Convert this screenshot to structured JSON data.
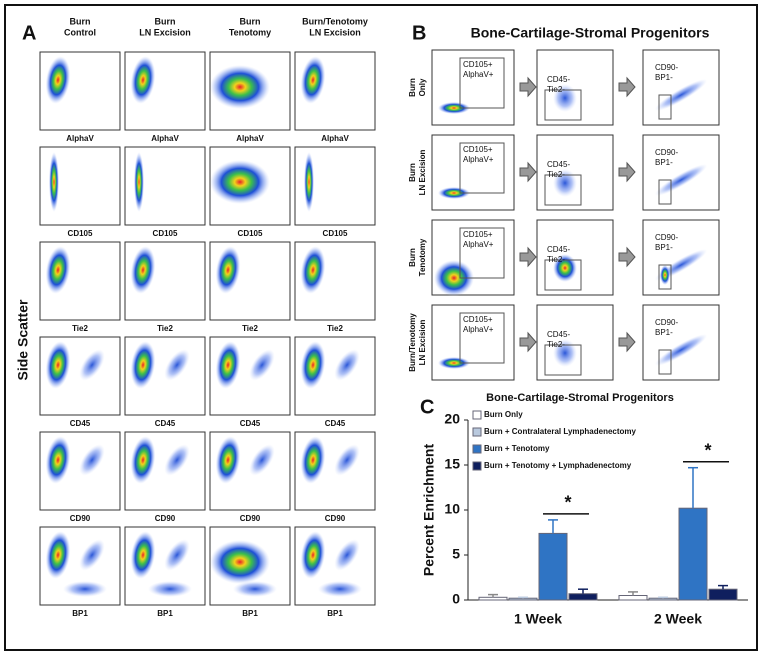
{
  "panel_a": {
    "label": "A",
    "y_label": "Side Scatter",
    "columns": [
      [
        "Burn",
        "Control"
      ],
      [
        "Burn",
        "LN Excision"
      ],
      [
        "Burn",
        "Tenotomy"
      ],
      [
        "Burn/Tenotomy",
        "LN Excision"
      ]
    ],
    "rows": [
      "AlphaV",
      "CD105",
      "Tie2",
      "CD45",
      "CD90",
      "BP1"
    ]
  },
  "panel_b": {
    "label": "B",
    "title": "Bone-Cartilage-Stromal Progenitors",
    "rows": [
      [
        "Burn",
        "Only"
      ],
      [
        "Burn",
        "LN Excision"
      ],
      [
        "Burn",
        "Tenotomy"
      ],
      [
        "Burn/Tenotomy",
        "LN Excision"
      ]
    ],
    "gates": [
      [
        "CD105+",
        "AlphaV+"
      ],
      [
        "CD45-",
        "Tie2-"
      ],
      [
        "CD90-",
        "BP1-"
      ]
    ]
  },
  "panel_c": {
    "label": "C"
  },
  "chart_data": {
    "type": "bar",
    "title": "Bone-Cartilage-Stromal Progenitors",
    "y_label": "Percent Enrichment",
    "categories": [
      "1 Week",
      "2 Week"
    ],
    "series": [
      {
        "name": "Burn Only",
        "color": "#ffffff",
        "values": [
          0.3,
          0.5
        ],
        "errors": [
          0.3,
          0.4
        ]
      },
      {
        "name": "Burn + Contralateral Lymphadenectomy",
        "color": "#b9c9de",
        "values": [
          0.2,
          0.2
        ],
        "errors": [
          0.1,
          0.1
        ]
      },
      {
        "name": "Burn + Tenotomy",
        "color": "#2f74c4",
        "values": [
          7.4,
          10.2
        ],
        "errors": [
          1.5,
          4.5
        ]
      },
      {
        "name": "Burn + Tenotomy + Lymphadenectomy",
        "color": "#0f1f5e",
        "values": [
          0.7,
          1.2
        ],
        "errors": [
          0.5,
          0.4
        ]
      }
    ],
    "annotations": [
      "*",
      "*"
    ],
    "ylim": [
      0,
      20
    ],
    "yticks": [
      0,
      5,
      10,
      15,
      20
    ],
    "legend": "upper left"
  }
}
